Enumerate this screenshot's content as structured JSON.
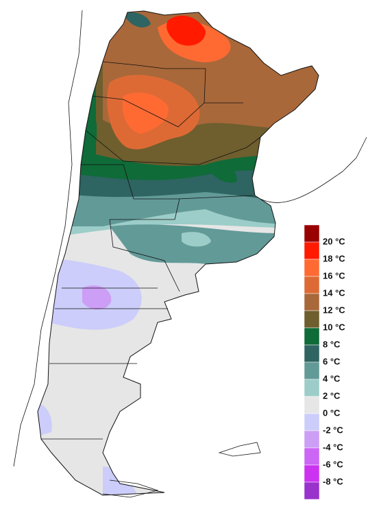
{
  "legend": {
    "labels": [
      "20 °C",
      "18 °C",
      "16 °C",
      "14 °C",
      "12 °C",
      "10 °C",
      "8 °C",
      "6 °C",
      "4 °C",
      "2 °C",
      "0 °C",
      "-2 °C",
      "-4 °C",
      "-6 °C",
      "-8 °C"
    ],
    "colors": [
      "#990000",
      "#ff1a00",
      "#ff6a33",
      "#dd6a35",
      "#a8683a",
      "#6f5e2e",
      "#0f6b38",
      "#2e6462",
      "#629a98",
      "#9ccdc8",
      "#e6e6e6",
      "#cccdfa",
      "#cc9ef5",
      "#cc66f5",
      "#cc33f0",
      "#9933cc"
    ]
  }
}
